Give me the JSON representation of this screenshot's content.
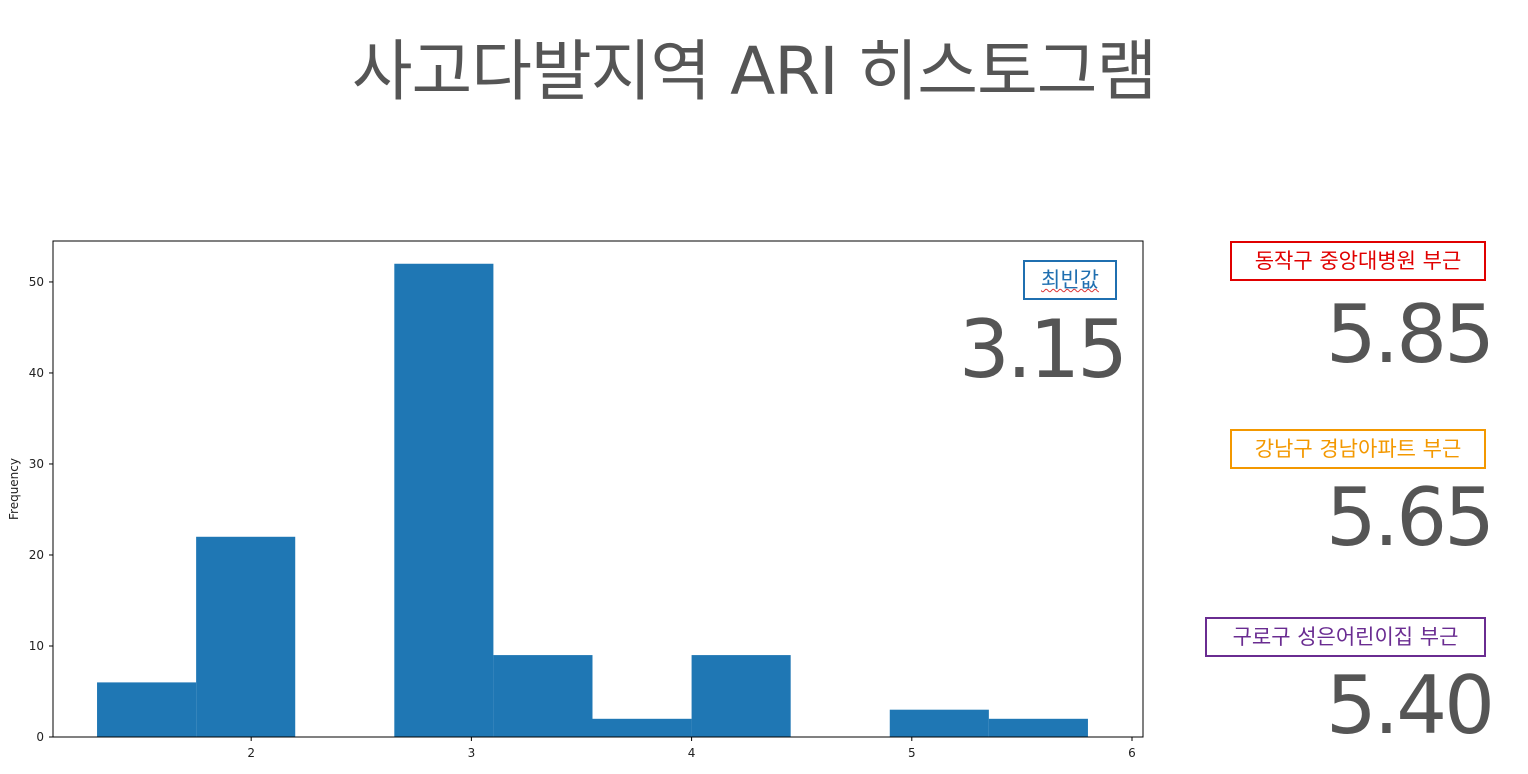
{
  "title": "사고다발지역 ARI 히스토그램",
  "mode_callout": {
    "label": "최빈값",
    "value": "3.15",
    "color": "#1f6fb0"
  },
  "locations": [
    {
      "label": "동작구 중앙대병원 부근",
      "value": "5.85",
      "color": "#e00000"
    },
    {
      "label": "강남구 경남아파트 부근",
      "value": "5.65",
      "color": "#f39800"
    },
    {
      "label": "구로구 성은어린이집 부근",
      "value": "5.40",
      "color": "#6a2c91"
    }
  ],
  "chart_data": {
    "type": "bar",
    "title": "",
    "xlabel": "",
    "ylabel": "Frequency",
    "bin_edges": [
      1.3,
      1.75,
      2.2,
      2.65,
      3.1,
      3.55,
      4.0,
      4.45,
      4.9,
      5.35,
      5.8
    ],
    "values": [
      6,
      22,
      0,
      52,
      9,
      2,
      9,
      0,
      3,
      2
    ],
    "xlim": [
      1.1,
      6.05
    ],
    "ylim": [
      0,
      54.5
    ],
    "xticks": [
      2,
      3,
      4,
      5,
      6
    ],
    "yticks": [
      0,
      10,
      20,
      30,
      40,
      50
    ],
    "bar_color": "#1f77b4",
    "grid": false
  }
}
